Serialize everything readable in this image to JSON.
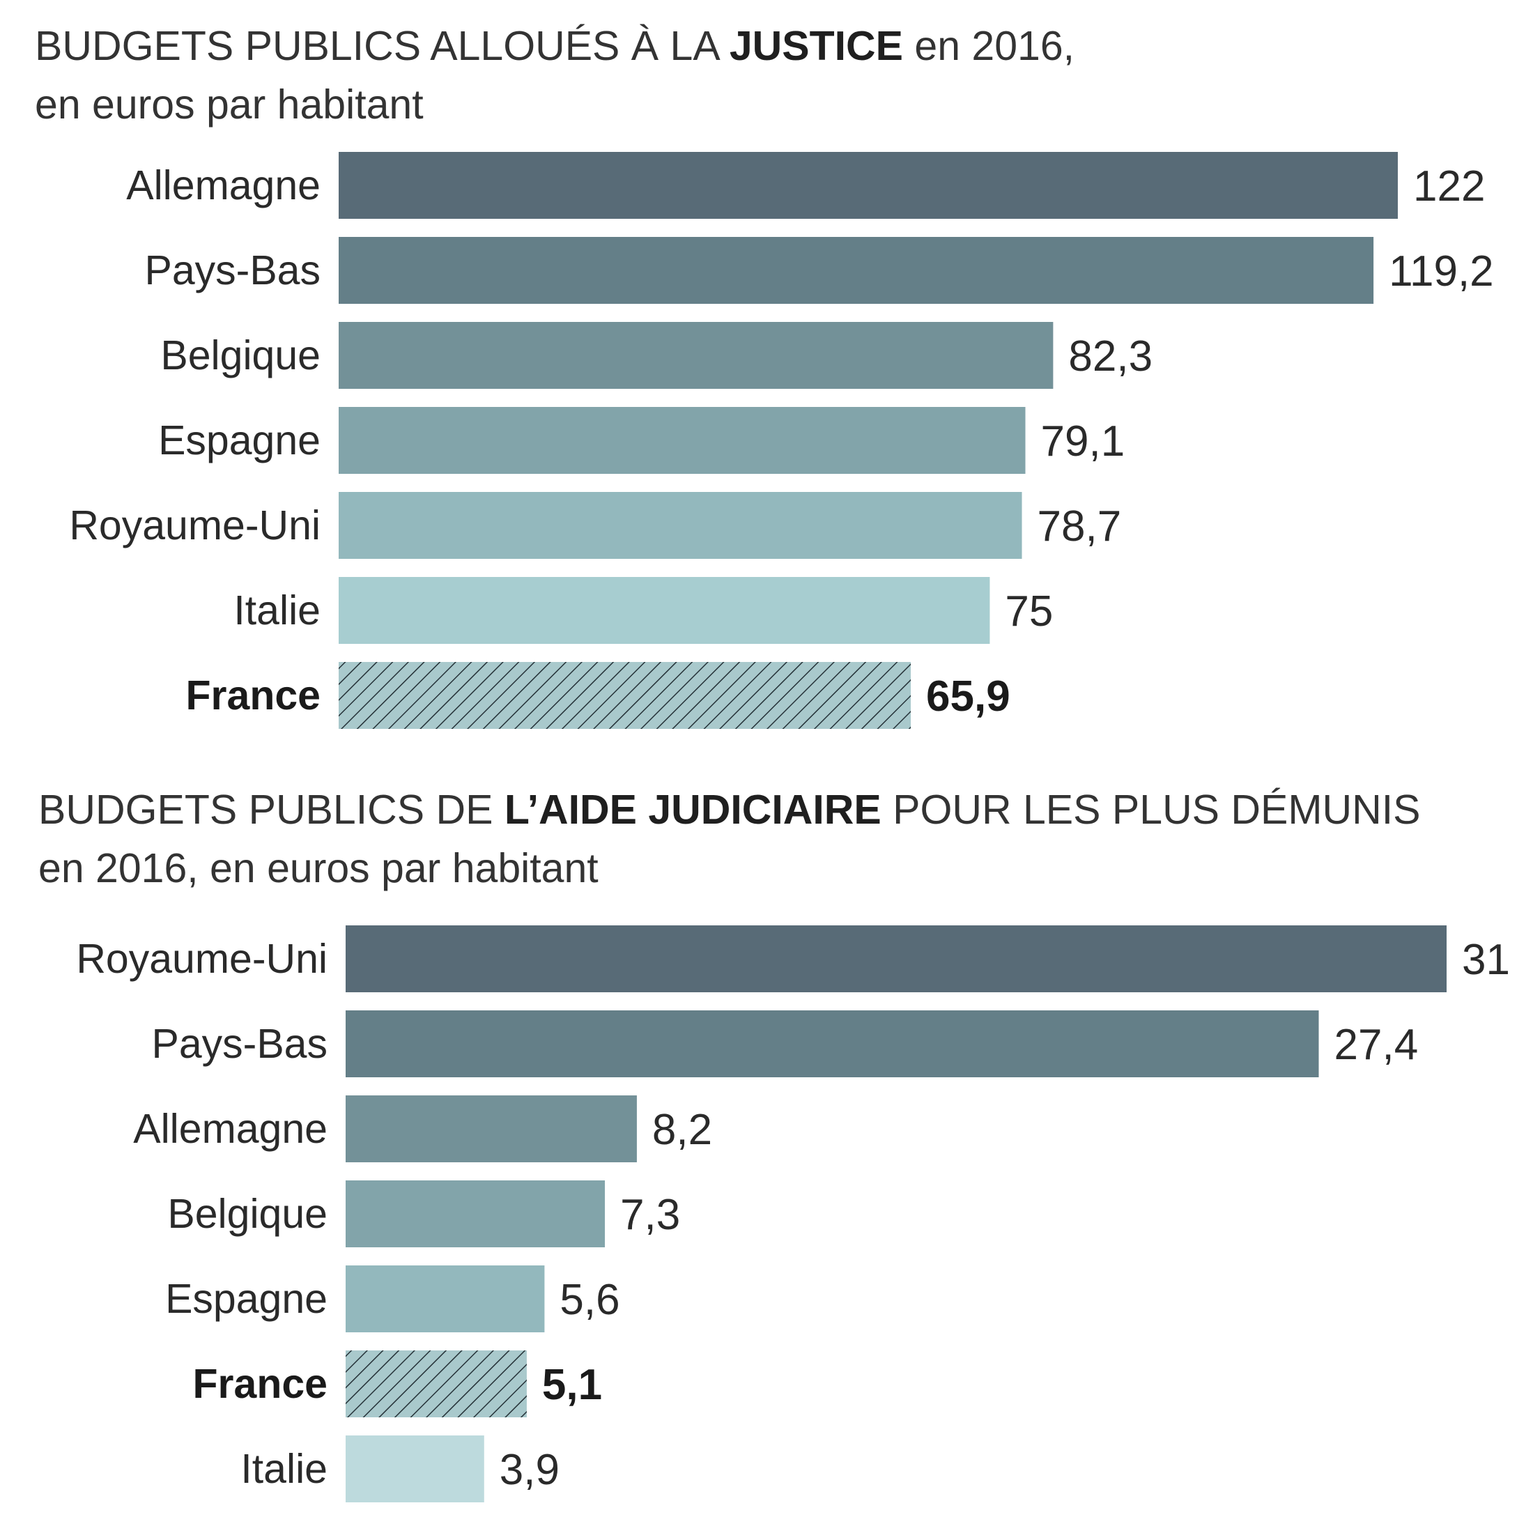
{
  "colors": {
    "shades": [
      "#586b77",
      "#647f88",
      "#739198",
      "#82a4aa",
      "#93b8bd",
      "#a7cdd0",
      "#bddadd"
    ],
    "hatch_bg": "#a9c9cc",
    "hatch_line": "#253238"
  },
  "chart_data": [
    {
      "type": "bar",
      "orientation": "horizontal",
      "title_pre": "BUDGETS PUBLICS ALLOUÉS À LA ",
      "title_bold": "JUSTICE",
      "title_post": " en 2016,",
      "subtitle": "en euros par habitant",
      "categories": [
        "Allemagne",
        "Pays-Bas",
        "Belgique",
        "Espagne",
        "Royaume-Uni",
        "Italie",
        "France"
      ],
      "values": [
        122,
        119.2,
        82.3,
        79.1,
        78.7,
        75,
        65.9
      ],
      "value_labels": [
        "122",
        "119,2",
        "82,3",
        "79,1",
        "78,7",
        "75",
        "65,9"
      ],
      "highlight": "France",
      "xlim": [
        0,
        122
      ]
    },
    {
      "type": "bar",
      "orientation": "horizontal",
      "title_pre": "BUDGETS PUBLICS DE ",
      "title_bold": "L’AIDE JUDICIAIRE",
      "title_post": " POUR LES PLUS DÉMUNIS",
      "subtitle": "en 2016, en euros par habitant",
      "categories": [
        "Royaume-Uni",
        "Pays-Bas",
        "Allemagne",
        "Belgique",
        "Espagne",
        "France",
        "Italie"
      ],
      "values": [
        31,
        27.4,
        8.2,
        7.3,
        5.6,
        5.1,
        3.9
      ],
      "value_labels": [
        "31",
        "27,4",
        "8,2",
        "7,3",
        "5,6",
        "5,1",
        "3,9"
      ],
      "highlight": "France",
      "xlim": [
        0,
        31
      ]
    }
  ]
}
